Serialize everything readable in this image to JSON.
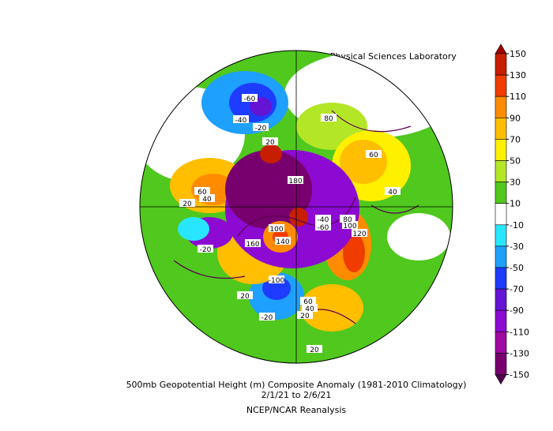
{
  "header": {
    "title": "NOAA Physical Sciences Laboratory"
  },
  "caption": {
    "line1": "500mb Geopotential Height (m) Composite Anomaly (1981-2010 Climatology)",
    "line2": "2/1/21   to 2/6/21",
    "line3": "NCEP/NCAR Reanalysis"
  },
  "colorbar": {
    "levels": [
      150,
      130,
      110,
      90,
      70,
      50,
      30,
      10,
      -10,
      -30,
      -50,
      -70,
      -90,
      -110,
      -130,
      -150
    ],
    "colors": [
      "#c81e00",
      "#f03c00",
      "#ff8c00",
      "#ffbe00",
      "#fff000",
      "#b4e628",
      "#50c81e",
      "#ffffff",
      "#28e6ff",
      "#1ea0ff",
      "#1e3cff",
      "#6414d2",
      "#8c0ad2",
      "#a00aa0",
      "#78006e"
    ],
    "top_color": "#a00000",
    "bottom_color": "#500050"
  },
  "contour_labels": [
    "-60",
    "-40",
    "-20",
    "80",
    "60",
    "40",
    "20",
    "60",
    "40",
    "20",
    "180",
    "160",
    "100",
    "140",
    "120",
    "100",
    "80",
    "-40",
    "-60",
    "-100",
    "-20",
    "60",
    "40",
    "20",
    "20",
    "-20",
    "20"
  ]
}
